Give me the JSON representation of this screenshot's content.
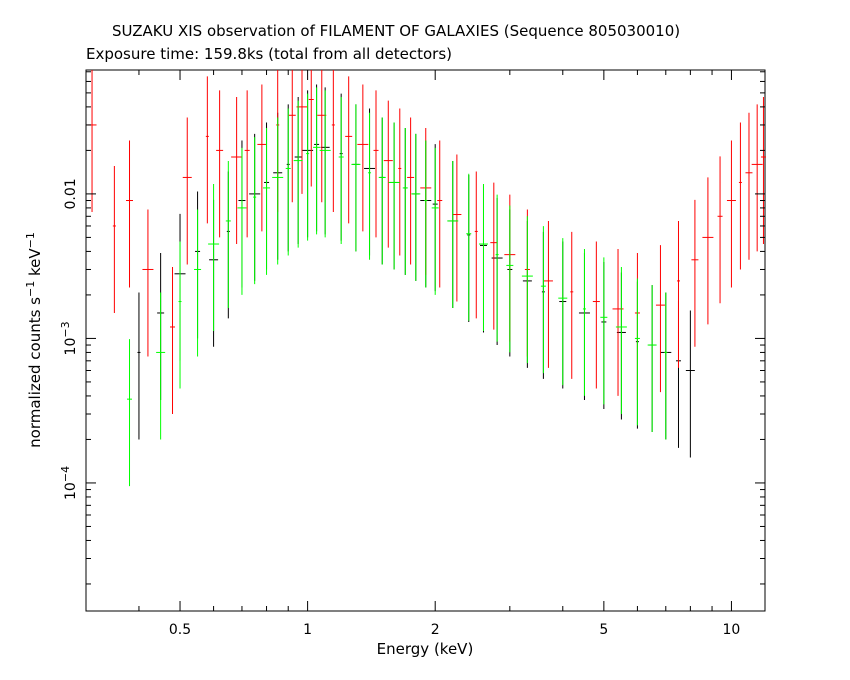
{
  "title": "SUZAKU XIS observation of FILAMENT OF GALAXIES (Sequence 805030010)",
  "subtitle": "Exposure time: 159.8ks (total from all detectors)",
  "colors": {
    "series_black": "#000000",
    "series_red": "#ff0000",
    "series_green": "#00ff00"
  },
  "chart_data": {
    "type": "scatter",
    "title": "SUZAKU XIS observation of FILAMENT OF GALAXIES (Sequence 805030010)",
    "subtitle": "Exposure time: 159.8ks (total from all detectors)",
    "xlabel": "Energy (keV)",
    "ylabel": "normalized counts s^-1 keV^-1",
    "xscale": "log",
    "yscale": "log",
    "xlim": [
      0.3,
      12
    ],
    "ylim": [
      1.3e-05,
      0.072
    ],
    "x_ticks": [
      {
        "value": 0.5,
        "label": "0.5"
      },
      {
        "value": 1,
        "label": "1"
      },
      {
        "value": 2,
        "label": "2"
      },
      {
        "value": 5,
        "label": "5"
      },
      {
        "value": 10,
        "label": "10"
      }
    ],
    "y_ticks": [
      {
        "value": 0.01,
        "label": "0.01",
        "base": "",
        "exp": ""
      },
      {
        "value": 0.001,
        "label": "",
        "base": "10",
        "exp": "−3"
      },
      {
        "value": 0.0001,
        "label": "",
        "base": "10",
        "exp": "−4"
      }
    ],
    "grid": false,
    "series": [
      {
        "color": "#000000",
        "points": [
          [
            0.4,
            0.0008
          ],
          [
            0.45,
            0.0015
          ],
          [
            0.5,
            0.0028
          ],
          [
            0.55,
            0.004
          ],
          [
            0.6,
            0.0035
          ],
          [
            0.65,
            0.0055
          ],
          [
            0.7,
            0.009
          ],
          [
            0.75,
            0.01
          ],
          [
            0.8,
            0.012
          ],
          [
            0.85,
            0.014
          ],
          [
            0.9,
            0.016
          ],
          [
            0.95,
            0.018
          ],
          [
            1.0,
            0.02
          ],
          [
            1.05,
            0.022
          ],
          [
            1.1,
            0.021
          ],
          [
            1.2,
            0.019
          ],
          [
            1.3,
            0.016
          ],
          [
            1.4,
            0.015
          ],
          [
            1.5,
            0.013
          ],
          [
            1.6,
            0.012
          ],
          [
            1.7,
            0.011
          ],
          [
            1.8,
            0.01
          ],
          [
            1.9,
            0.009
          ],
          [
            2.0,
            0.0085
          ],
          [
            2.2,
            0.0065
          ],
          [
            2.4,
            0.0052
          ],
          [
            2.6,
            0.0044
          ],
          [
            2.8,
            0.0036
          ],
          [
            3.0,
            0.003
          ],
          [
            3.3,
            0.0025
          ],
          [
            3.6,
            0.0021
          ],
          [
            4.0,
            0.0018
          ],
          [
            4.5,
            0.0015
          ],
          [
            5.0,
            0.0013
          ],
          [
            5.5,
            0.0011
          ],
          [
            6.0,
            0.00095
          ],
          [
            6.5,
            0.0009
          ],
          [
            7.0,
            0.0008
          ],
          [
            7.5,
            0.0007
          ],
          [
            8.0,
            0.0006
          ]
        ]
      },
      {
        "color": "#ff0000",
        "points": [
          [
            0.31,
            0.03
          ],
          [
            0.35,
            0.006
          ],
          [
            0.38,
            0.009
          ],
          [
            0.42,
            0.003
          ],
          [
            0.48,
            0.0012
          ],
          [
            0.52,
            0.013
          ],
          [
            0.58,
            0.025
          ],
          [
            0.62,
            0.02
          ],
          [
            0.68,
            0.018
          ],
          [
            0.72,
            0.02
          ],
          [
            0.78,
            0.022
          ],
          [
            0.85,
            0.03
          ],
          [
            0.92,
            0.035
          ],
          [
            0.97,
            0.04
          ],
          [
            1.02,
            0.045
          ],
          [
            1.08,
            0.035
          ],
          [
            1.15,
            0.03
          ],
          [
            1.25,
            0.025
          ],
          [
            1.35,
            0.022
          ],
          [
            1.45,
            0.02
          ],
          [
            1.55,
            0.017
          ],
          [
            1.65,
            0.015
          ],
          [
            1.75,
            0.013
          ],
          [
            1.9,
            0.011
          ],
          [
            2.05,
            0.009
          ],
          [
            2.25,
            0.0072
          ],
          [
            2.5,
            0.0055
          ],
          [
            2.75,
            0.0046
          ],
          [
            3.0,
            0.0038
          ],
          [
            3.3,
            0.003
          ],
          [
            3.7,
            0.0025
          ],
          [
            4.2,
            0.0021
          ],
          [
            4.8,
            0.0018
          ],
          [
            5.4,
            0.0016
          ],
          [
            6.0,
            0.0015
          ],
          [
            6.8,
            0.0017
          ],
          [
            7.5,
            0.0025
          ],
          [
            8.2,
            0.0035
          ],
          [
            8.8,
            0.005
          ],
          [
            9.4,
            0.007
          ],
          [
            10.0,
            0.009
          ],
          [
            10.5,
            0.012
          ],
          [
            11.0,
            0.014
          ],
          [
            11.5,
            0.016
          ],
          [
            11.9,
            0.018
          ]
        ]
      },
      {
        "color": "#00ff00",
        "points": [
          [
            0.38,
            0.00038
          ],
          [
            0.45,
            0.0008
          ],
          [
            0.5,
            0.0018
          ],
          [
            0.55,
            0.003
          ],
          [
            0.6,
            0.0045
          ],
          [
            0.65,
            0.0065
          ],
          [
            0.7,
            0.008
          ],
          [
            0.75,
            0.0095
          ],
          [
            0.8,
            0.011
          ],
          [
            0.85,
            0.013
          ],
          [
            0.9,
            0.015
          ],
          [
            0.95,
            0.017
          ],
          [
            1.0,
            0.019
          ],
          [
            1.05,
            0.021
          ],
          [
            1.1,
            0.02
          ],
          [
            1.2,
            0.018
          ],
          [
            1.3,
            0.016
          ],
          [
            1.4,
            0.014
          ],
          [
            1.5,
            0.013
          ],
          [
            1.6,
            0.012
          ],
          [
            1.7,
            0.011
          ],
          [
            1.8,
            0.01
          ],
          [
            1.9,
            0.009
          ],
          [
            2.0,
            0.008
          ],
          [
            2.2,
            0.0065
          ],
          [
            2.4,
            0.0053
          ],
          [
            2.6,
            0.0045
          ],
          [
            2.8,
            0.0038
          ],
          [
            3.0,
            0.0032
          ],
          [
            3.3,
            0.0027
          ],
          [
            3.6,
            0.0023
          ],
          [
            4.0,
            0.0019
          ],
          [
            4.5,
            0.0016
          ],
          [
            5.0,
            0.0014
          ],
          [
            5.5,
            0.0012
          ],
          [
            6.0,
            0.001
          ],
          [
            6.5,
            0.0009
          ],
          [
            7.0,
            0.0008
          ]
        ]
      }
    ]
  }
}
